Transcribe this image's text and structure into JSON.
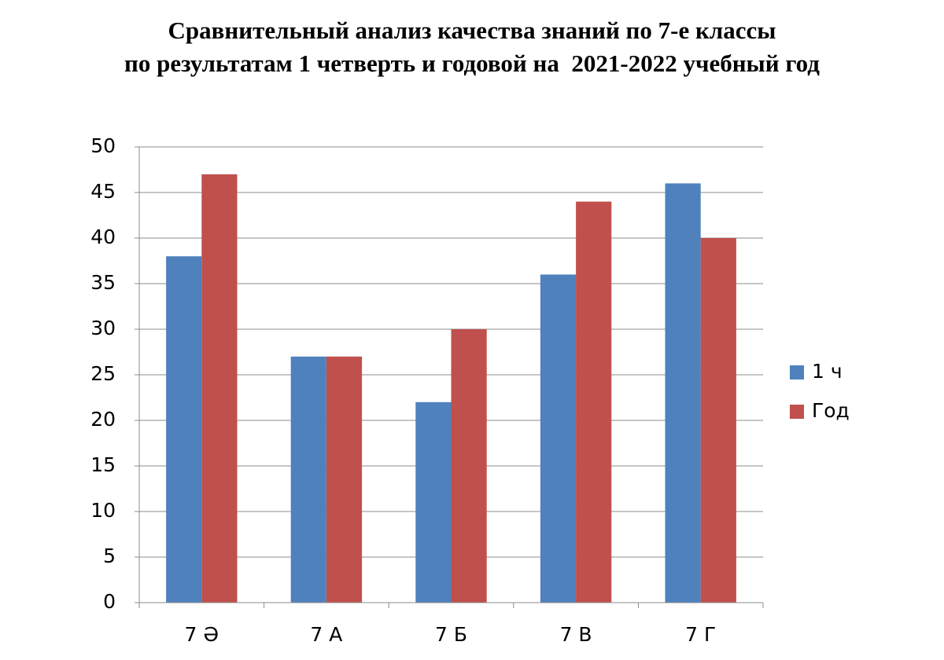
{
  "chart_data": {
    "type": "bar",
    "title": [
      "Сравнительный анализ качества знаний по 7-е классы",
      "по результатам 1 четверть и годовой на  2021-2022 учебный год"
    ],
    "categories": [
      "7 Ә",
      "7 А",
      "7 Б",
      "7 В",
      "7 Г"
    ],
    "series": [
      {
        "name": "1 ч",
        "color": "#4f81bd",
        "values": [
          38,
          27,
          22,
          36,
          46
        ]
      },
      {
        "name": "Год",
        "color": "#c0504d",
        "values": [
          47,
          27,
          30,
          44,
          40
        ]
      }
    ],
    "ylim": [
      0,
      50
    ],
    "yticks": [
      0,
      5,
      10,
      15,
      20,
      25,
      30,
      35,
      40,
      45,
      50
    ],
    "grid": true,
    "legend": "right"
  }
}
